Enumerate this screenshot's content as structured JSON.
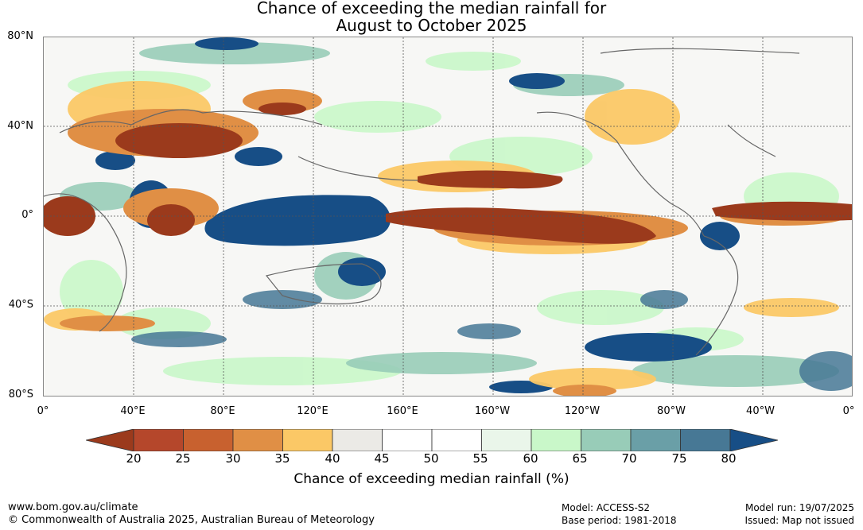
{
  "title": {
    "line1": "Chance of exceeding the median rainfall for",
    "line2": "August to October 2025"
  },
  "map": {
    "lat_labels": [
      "80°N",
      "40°N",
      "0°",
      "40°S",
      "80°S"
    ],
    "lon_labels": [
      "0°",
      "40°E",
      "80°E",
      "120°E",
      "160°E",
      "160°W",
      "120°W",
      "80°W",
      "40°W",
      "0°"
    ],
    "land_color": "#ffffff",
    "coast_color": "#666666",
    "grid_color": "#555555"
  },
  "colorbar": {
    "ticks": [
      "20",
      "25",
      "30",
      "35",
      "40",
      "45",
      "50",
      "55",
      "60",
      "65",
      "70",
      "75",
      "80"
    ],
    "colors": [
      "#9b3a1c",
      "#b5472b",
      "#c8612f",
      "#e08f45",
      "#fbc866",
      "#ebeae6",
      "#ffffff",
      "#ffffff",
      "#eaf6ea",
      "#c9f7c9",
      "#98ccb8",
      "#6a9fa7",
      "#477895",
      "#174e86"
    ],
    "label": "Chance of exceeding median rainfall (%)"
  },
  "footer": {
    "website": "www.bom.gov.au/climate",
    "copyright": "© Commonwealth of Australia 2025, Australian Bureau of Meteorology",
    "model": "Model: ACCESS-S2",
    "base_period": "Base period: 1981-2018",
    "model_run": "Model run: 19/07/2025",
    "issued": "Issued: Map not issued"
  }
}
